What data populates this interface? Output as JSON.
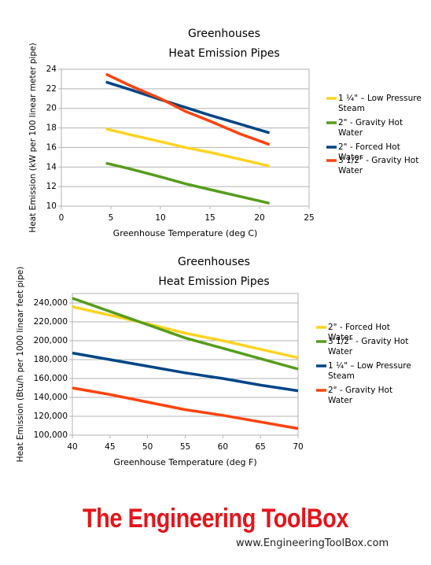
{
  "chart_data": [
    {
      "type": "line",
      "title": "Greenhouses",
      "subtitle": "Heat Emission Pipes",
      "x_label": "Greenhouse Temperature (deg C)",
      "y_label": "Heat Emission (kW per 100 linear meter pipe)",
      "x": [
        4.5,
        7,
        10,
        12.5,
        15,
        18,
        21
      ],
      "xlim": [
        0,
        25
      ],
      "xticks": [
        0,
        5,
        10,
        15,
        20,
        25
      ],
      "ylim": [
        10,
        24
      ],
      "yticks": [
        10,
        12,
        14,
        16,
        18,
        20,
        22,
        24
      ],
      "grid": true,
      "series": [
        {
          "name": "1 ¼\" – Low Pressure Steam",
          "color": "#ffd320",
          "values": [
            17.9,
            17.3,
            16.6,
            16.0,
            15.5,
            14.8,
            14.1
          ]
        },
        {
          "name": "2\" - Gravity Hot Water",
          "color": "#579d1c",
          "values": [
            14.4,
            13.8,
            13.0,
            12.3,
            11.7,
            11.0,
            10.3
          ]
        },
        {
          "name": "2\" - Forced Hot Water",
          "color": "#004586",
          "values": [
            22.7,
            21.9,
            20.9,
            20.1,
            19.3,
            18.4,
            17.5
          ]
        },
        {
          "name": "3 1/2\" - Gravity Hot Water",
          "color": "#ff420e",
          "values": [
            23.5,
            22.3,
            21.0,
            19.7,
            18.7,
            17.4,
            16.3
          ]
        }
      ]
    },
    {
      "type": "line",
      "title": "Greenhouses",
      "subtitle": "Heat Emission Pipes",
      "x_label": "Greenhouse Temperature (deg F)",
      "y_label": "Heat Emission (Btu/h per 1000 linear feet pipe)",
      "x": [
        40,
        45,
        50,
        55,
        60,
        65,
        70
      ],
      "xlim": [
        40,
        70
      ],
      "xticks": [
        40,
        45,
        50,
        55,
        60,
        65,
        70
      ],
      "ylim": [
        100000,
        250000
      ],
      "yticks": [
        {
          "value": 100000,
          "label": "100,000"
        },
        {
          "value": 120000,
          "label": "120,000"
        },
        {
          "value": 140000,
          "label": "140,000"
        },
        {
          "value": 160000,
          "label": "160,000"
        },
        {
          "value": 180000,
          "label": "180,000"
        },
        {
          "value": 200000,
          "label": "200,000"
        },
        {
          "value": 220000,
          "label": "220,000"
        },
        {
          "value": 240000,
          "label": "240,000"
        }
      ],
      "grid": true,
      "series": [
        {
          "name": "2\" - Forced Hot Water",
          "color": "#ffd320",
          "values": [
            236000,
            227000,
            218000,
            208000,
            200000,
            191000,
            182000
          ]
        },
        {
          "name": "3 1/2\" - Gravity Hot Water",
          "color": "#579d1c",
          "values": [
            245000,
            231000,
            217000,
            203000,
            192000,
            181000,
            170000
          ]
        },
        {
          "name": "1 ¼\" – Low Pressure Steam",
          "color": "#004586",
          "values": [
            187000,
            180000,
            173000,
            166000,
            160000,
            153000,
            147000
          ]
        },
        {
          "name": "2\" - Gravity Hot Water",
          "color": "#ff420e",
          "values": [
            150000,
            143000,
            135000,
            127000,
            121000,
            114000,
            107000
          ]
        }
      ]
    }
  ],
  "footer": {
    "brand": "The Engineering ToolBox",
    "url": "www.EngineeringToolBox.com"
  }
}
